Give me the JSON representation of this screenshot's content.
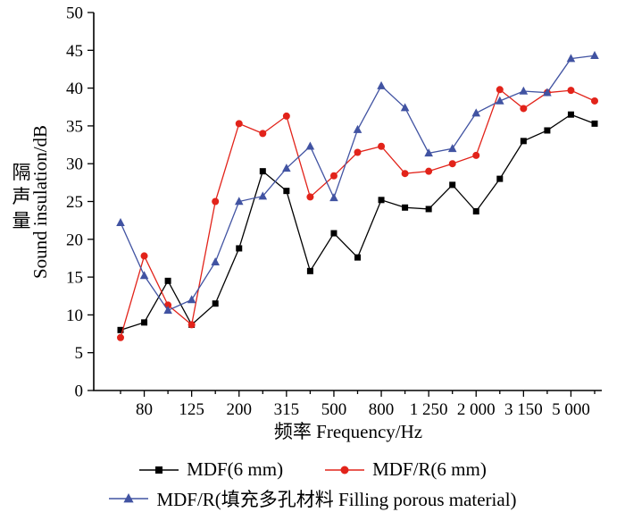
{
  "chart_data": {
    "type": "line",
    "title": "",
    "xlabel": "频率 Frequency/Hz",
    "ylabel_zh": "隔声量",
    "ylabel_en": "Sound insulation/dB",
    "ylim": [
      0,
      50
    ],
    "ytick_step": 5,
    "x_scale": "log (1/3 octave bands)",
    "grid": false,
    "legend_position": "bottom",
    "x_bands": [
      63,
      80,
      100,
      125,
      160,
      200,
      250,
      315,
      400,
      500,
      630,
      800,
      1000,
      1250,
      1600,
      2000,
      2500,
      3150,
      4000,
      5000,
      6300
    ],
    "x_tick_labels": {
      "1": "80",
      "3": "125",
      "5": "200",
      "7": "315",
      "9": "500",
      "11": "800",
      "13": "1 250",
      "15": "2 000",
      "17": "3 150",
      "19": "5 000"
    },
    "series": [
      {
        "name": "MDF(6 mm)",
        "color": "#000000",
        "marker": "square",
        "values": [
          8.0,
          9.0,
          14.5,
          8.7,
          11.5,
          18.8,
          29.0,
          26.4,
          15.8,
          20.8,
          17.6,
          25.2,
          24.2,
          24.0,
          27.2,
          23.7,
          28.0,
          33.0,
          34.4,
          36.5,
          35.3
        ]
      },
      {
        "name": "MDF/R(6 mm)",
        "color": "#e2231a",
        "marker": "circle",
        "values": [
          7.0,
          17.8,
          11.3,
          8.7,
          25.0,
          35.3,
          34.0,
          36.3,
          25.6,
          28.4,
          31.5,
          32.3,
          28.7,
          29.0,
          30.0,
          31.1,
          39.8,
          37.3,
          39.4,
          39.7,
          38.3
        ]
      },
      {
        "name": "MDF/R(填充多孔材料 Filling porous material)",
        "color": "#4153a2",
        "marker": "triangle",
        "values": [
          22.2,
          15.2,
          10.6,
          12.0,
          17.0,
          25.0,
          25.7,
          29.4,
          32.3,
          25.5,
          34.5,
          40.3,
          37.4,
          31.4,
          32.0,
          36.7,
          38.3,
          39.6,
          39.4,
          43.9,
          44.3
        ]
      }
    ]
  }
}
